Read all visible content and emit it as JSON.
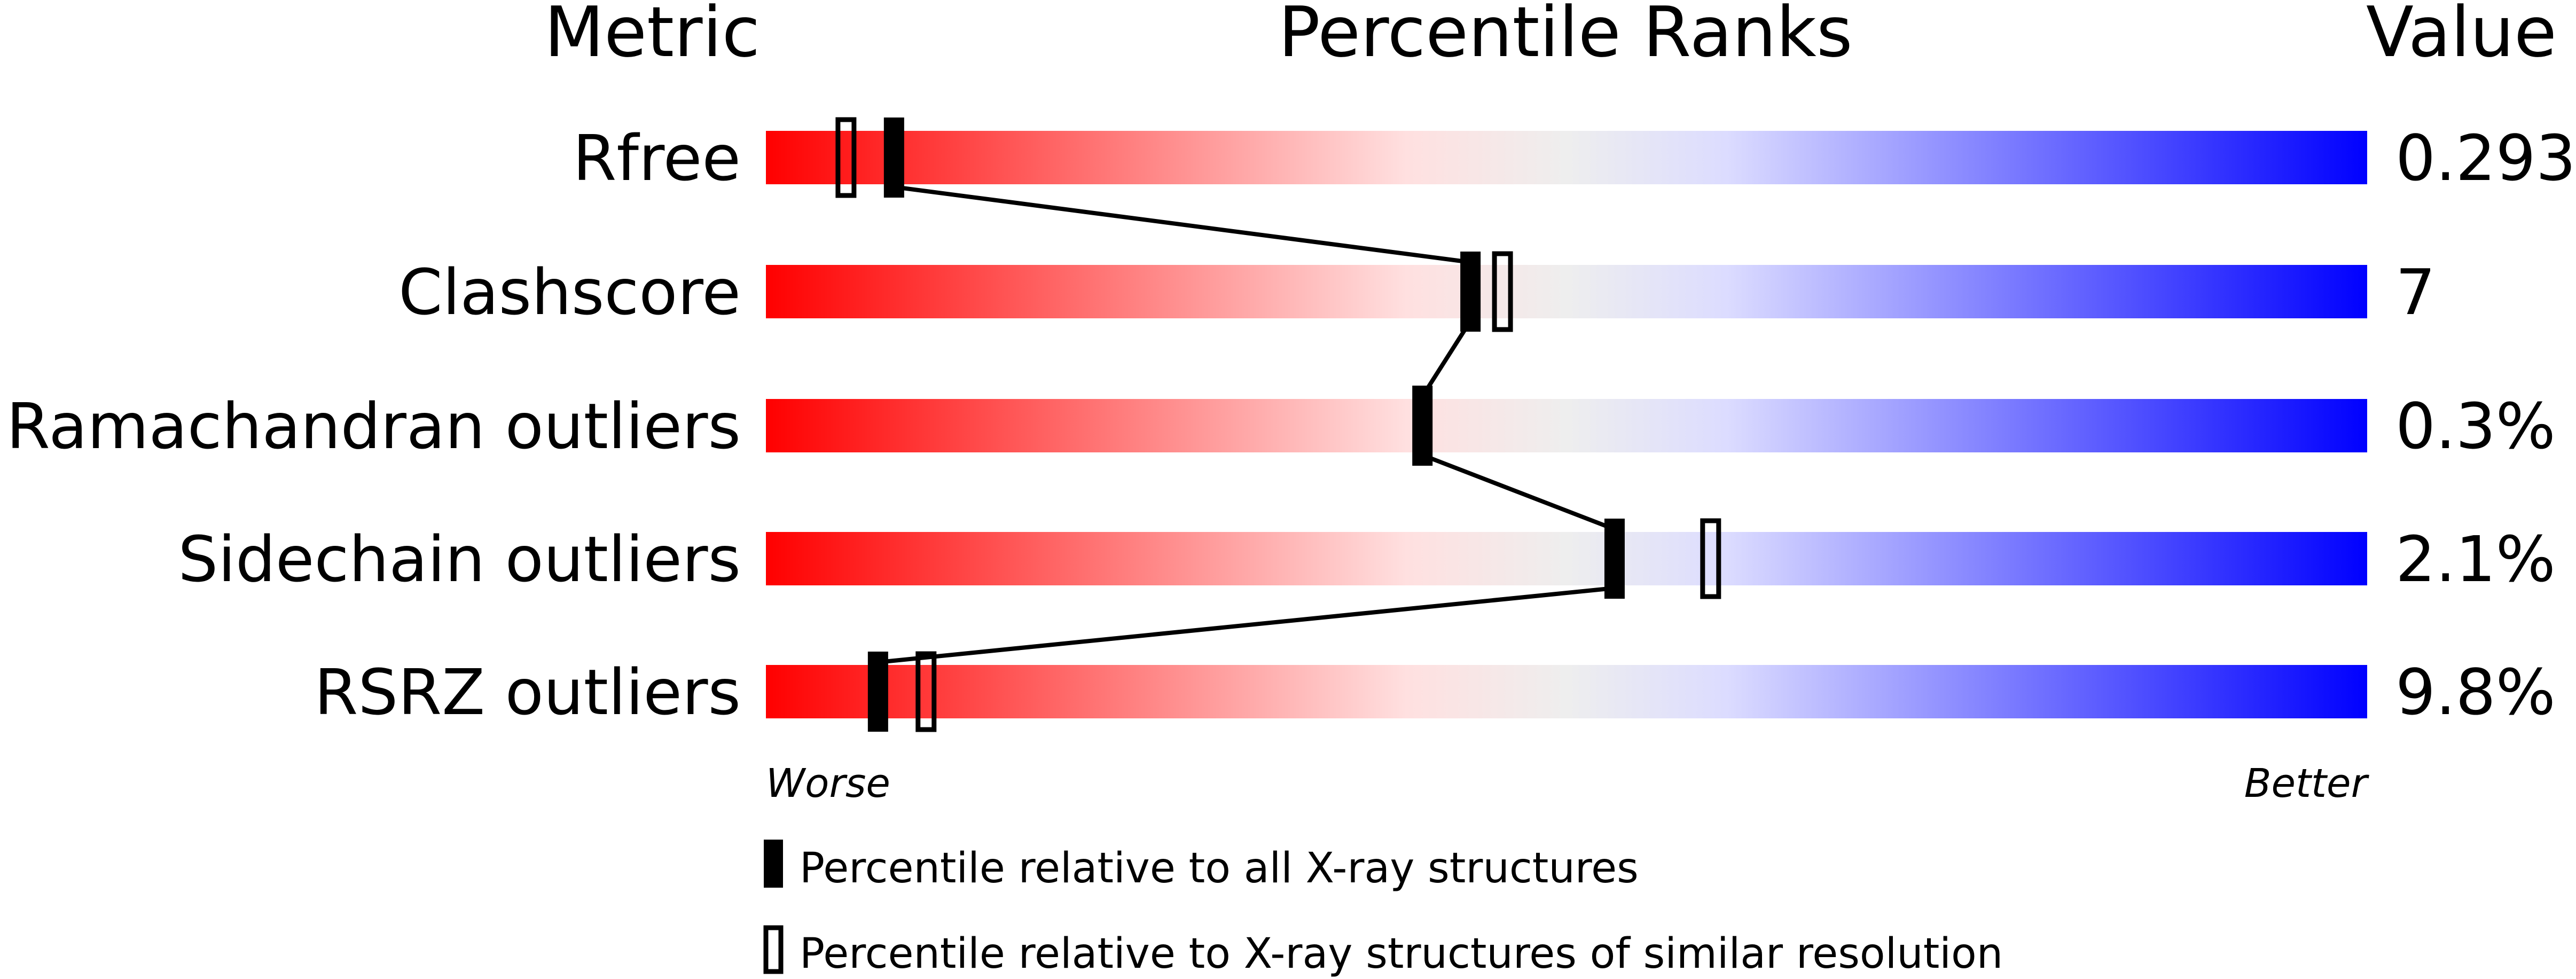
{
  "chart_data": {
    "type": "bar",
    "headers": {
      "metric": "Metric",
      "ranks": "Percentile Ranks",
      "value": "Value"
    },
    "xlim": [
      0,
      100
    ],
    "axis_labels": {
      "left": "Worse",
      "right": "Better"
    },
    "gradient_colors": [
      "#ff0000",
      "#ffe0e0",
      "#eeeeee",
      "#dcdcff",
      "#0000ff"
    ],
    "rows": [
      {
        "metric": "Rfree",
        "value": "0.293",
        "percentile_all": 8,
        "percentile_similar": 5
      },
      {
        "metric": "Clashscore",
        "value": "7",
        "percentile_all": 44,
        "percentile_similar": 46
      },
      {
        "metric": "Ramachandran outliers",
        "value": "0.3%",
        "percentile_all": 41,
        "percentile_similar": null
      },
      {
        "metric": "Sidechain outliers",
        "value": "2.1%",
        "percentile_all": 53,
        "percentile_similar": 59
      },
      {
        "metric": "RSRZ outliers",
        "value": "9.8%",
        "percentile_all": 7,
        "percentile_similar": 10
      }
    ],
    "legend": [
      {
        "marker": "filled",
        "label": "Percentile relative to all X-ray structures"
      },
      {
        "marker": "open",
        "label": "Percentile relative to X-ray structures of similar resolution"
      }
    ]
  }
}
